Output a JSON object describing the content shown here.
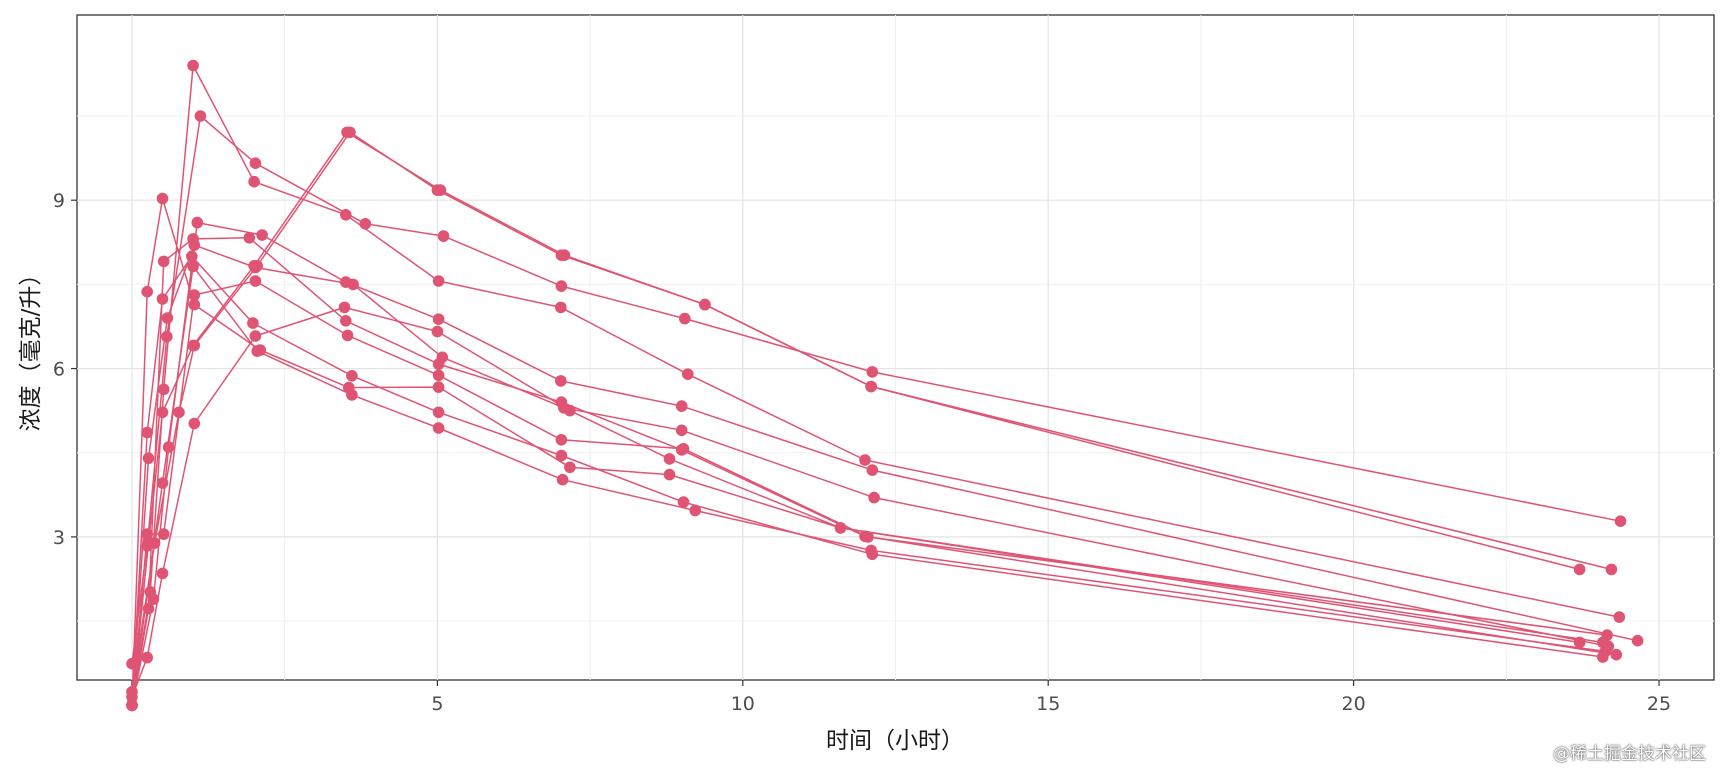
{
  "watermark": "@稀土掘金技术社区",
  "chart_data": {
    "type": "line",
    "xlabel": "时间（小时）",
    "ylabel": "浓度（毫克/升）",
    "xlim": [
      -0.9,
      25.9
    ],
    "ylim": [
      0.45,
      12.3
    ],
    "x_ticks": [
      0,
      5,
      10,
      15,
      20,
      25
    ],
    "y_ticks": [
      3,
      6,
      9
    ],
    "grid": true,
    "legend": "none",
    "color": "#E05473",
    "series": [
      {
        "points": [
          [
            0,
            0.74
          ],
          [
            0.25,
            2.84
          ],
          [
            0.57,
            6.57
          ],
          [
            1.12,
            10.5
          ],
          [
            2.02,
            9.66
          ],
          [
            3.82,
            8.58
          ],
          [
            5.1,
            8.36
          ],
          [
            7.03,
            7.47
          ],
          [
            9.05,
            6.89
          ],
          [
            12.12,
            5.94
          ],
          [
            24.37,
            3.28
          ]
        ]
      },
      {
        "points": [
          [
            0,
            0.0
          ],
          [
            0.27,
            1.72
          ],
          [
            0.52,
            7.91
          ],
          [
            1.0,
            8.31
          ],
          [
            1.92,
            8.33
          ],
          [
            3.5,
            6.85
          ],
          [
            5.02,
            6.08
          ],
          [
            7.03,
            5.4
          ],
          [
            9.0,
            4.55
          ],
          [
            12.0,
            3.01
          ],
          [
            24.3,
            0.9
          ]
        ]
      },
      {
        "points": [
          [
            0,
            0.0
          ],
          [
            0.27,
            4.4
          ],
          [
            0.58,
            6.9
          ],
          [
            1.02,
            8.2
          ],
          [
            2.02,
            7.8
          ],
          [
            3.62,
            7.5
          ],
          [
            5.08,
            6.2
          ],
          [
            7.07,
            5.3
          ],
          [
            9.0,
            4.9
          ],
          [
            12.15,
            3.7
          ],
          [
            24.17,
            1.05
          ]
        ]
      },
      {
        "points": [
          [
            0,
            0.0
          ],
          [
            0.35,
            1.89
          ],
          [
            0.6,
            4.6
          ],
          [
            1.07,
            8.6
          ],
          [
            2.13,
            8.38
          ],
          [
            3.5,
            7.54
          ],
          [
            5.02,
            6.88
          ],
          [
            7.02,
            5.78
          ],
          [
            9.0,
            5.33
          ],
          [
            12.12,
            4.19
          ],
          [
            24.65,
            1.15
          ]
        ]
      },
      {
        "points": [
          [
            0,
            0.0
          ],
          [
            0.3,
            2.02
          ],
          [
            0.52,
            5.63
          ],
          [
            1.0,
            11.4
          ],
          [
            2.0,
            9.33
          ],
          [
            3.5,
            8.74
          ],
          [
            5.02,
            7.56
          ],
          [
            7.02,
            7.09
          ],
          [
            9.1,
            5.9
          ],
          [
            12.0,
            4.37
          ],
          [
            24.35,
            1.57
          ]
        ]
      },
      {
        "points": [
          [
            0,
            0.0
          ],
          [
            0.27,
            2.89
          ],
          [
            0.5,
            5.22
          ],
          [
            1.0,
            6.41
          ],
          [
            2.0,
            7.83
          ],
          [
            3.52,
            10.21
          ],
          [
            5.05,
            9.18
          ],
          [
            7.08,
            8.02
          ],
          [
            9.38,
            7.14
          ],
          [
            12.1,
            5.68
          ],
          [
            24.22,
            2.42
          ]
        ]
      },
      {
        "points": [
          [
            0,
            0.15
          ],
          [
            0.25,
            0.85
          ],
          [
            0.5,
            2.35
          ],
          [
            1.02,
            5.02
          ],
          [
            2.02,
            6.58
          ],
          [
            3.48,
            7.09
          ],
          [
            5.0,
            6.66
          ],
          [
            7.17,
            5.25
          ],
          [
            8.8,
            4.39
          ],
          [
            11.6,
            3.16
          ],
          [
            24.08,
            1.12
          ]
        ]
      },
      {
        "points": [
          [
            0,
            0.0
          ],
          [
            0.25,
            3.05
          ],
          [
            0.52,
            3.05
          ],
          [
            1.02,
            7.31
          ],
          [
            2.02,
            7.56
          ],
          [
            3.53,
            6.59
          ],
          [
            5.02,
            5.88
          ],
          [
            7.03,
            4.73
          ],
          [
            9.03,
            4.57
          ],
          [
            12.05,
            3.0
          ],
          [
            24.15,
            1.25
          ]
        ]
      },
      {
        "points": [
          [
            0,
            0.0
          ],
          [
            0.25,
            7.37
          ],
          [
            0.5,
            9.03
          ],
          [
            1.02,
            7.14
          ],
          [
            2.1,
            6.33
          ],
          [
            3.55,
            5.66
          ],
          [
            5.02,
            5.67
          ],
          [
            7.17,
            4.24
          ],
          [
            8.8,
            4.11
          ],
          [
            11.6,
            3.16
          ],
          [
            23.7,
            1.12
          ]
        ]
      },
      {
        "points": [
          [
            0,
            0.24
          ],
          [
            0.37,
            2.89
          ],
          [
            0.77,
            5.22
          ],
          [
            1.02,
            6.41
          ],
          [
            2.05,
            7.83
          ],
          [
            3.57,
            10.21
          ],
          [
            5.0,
            9.18
          ],
          [
            7.03,
            8.02
          ],
          [
            9.38,
            7.14
          ],
          [
            12.1,
            5.68
          ],
          [
            23.7,
            2.42
          ]
        ]
      },
      {
        "points": [
          [
            0,
            0.0
          ],
          [
            0.25,
            4.86
          ],
          [
            0.5,
            7.24
          ],
          [
            0.98,
            8.0
          ],
          [
            1.98,
            6.81
          ],
          [
            3.6,
            5.87
          ],
          [
            5.02,
            5.22
          ],
          [
            7.03,
            4.45
          ],
          [
            9.03,
            3.62
          ],
          [
            12.12,
            2.69
          ],
          [
            24.08,
            0.86
          ]
        ]
      },
      {
        "points": [
          [
            0,
            0.0
          ],
          [
            0.5,
            3.96
          ],
          [
            1.0,
            7.82
          ],
          [
            2.05,
            6.31
          ],
          [
            3.6,
            5.53
          ],
          [
            5.02,
            4.94
          ],
          [
            7.05,
            4.02
          ],
          [
            9.22,
            3.47
          ],
          [
            12.1,
            2.76
          ],
          [
            24.12,
            0.96
          ]
        ]
      }
    ]
  }
}
